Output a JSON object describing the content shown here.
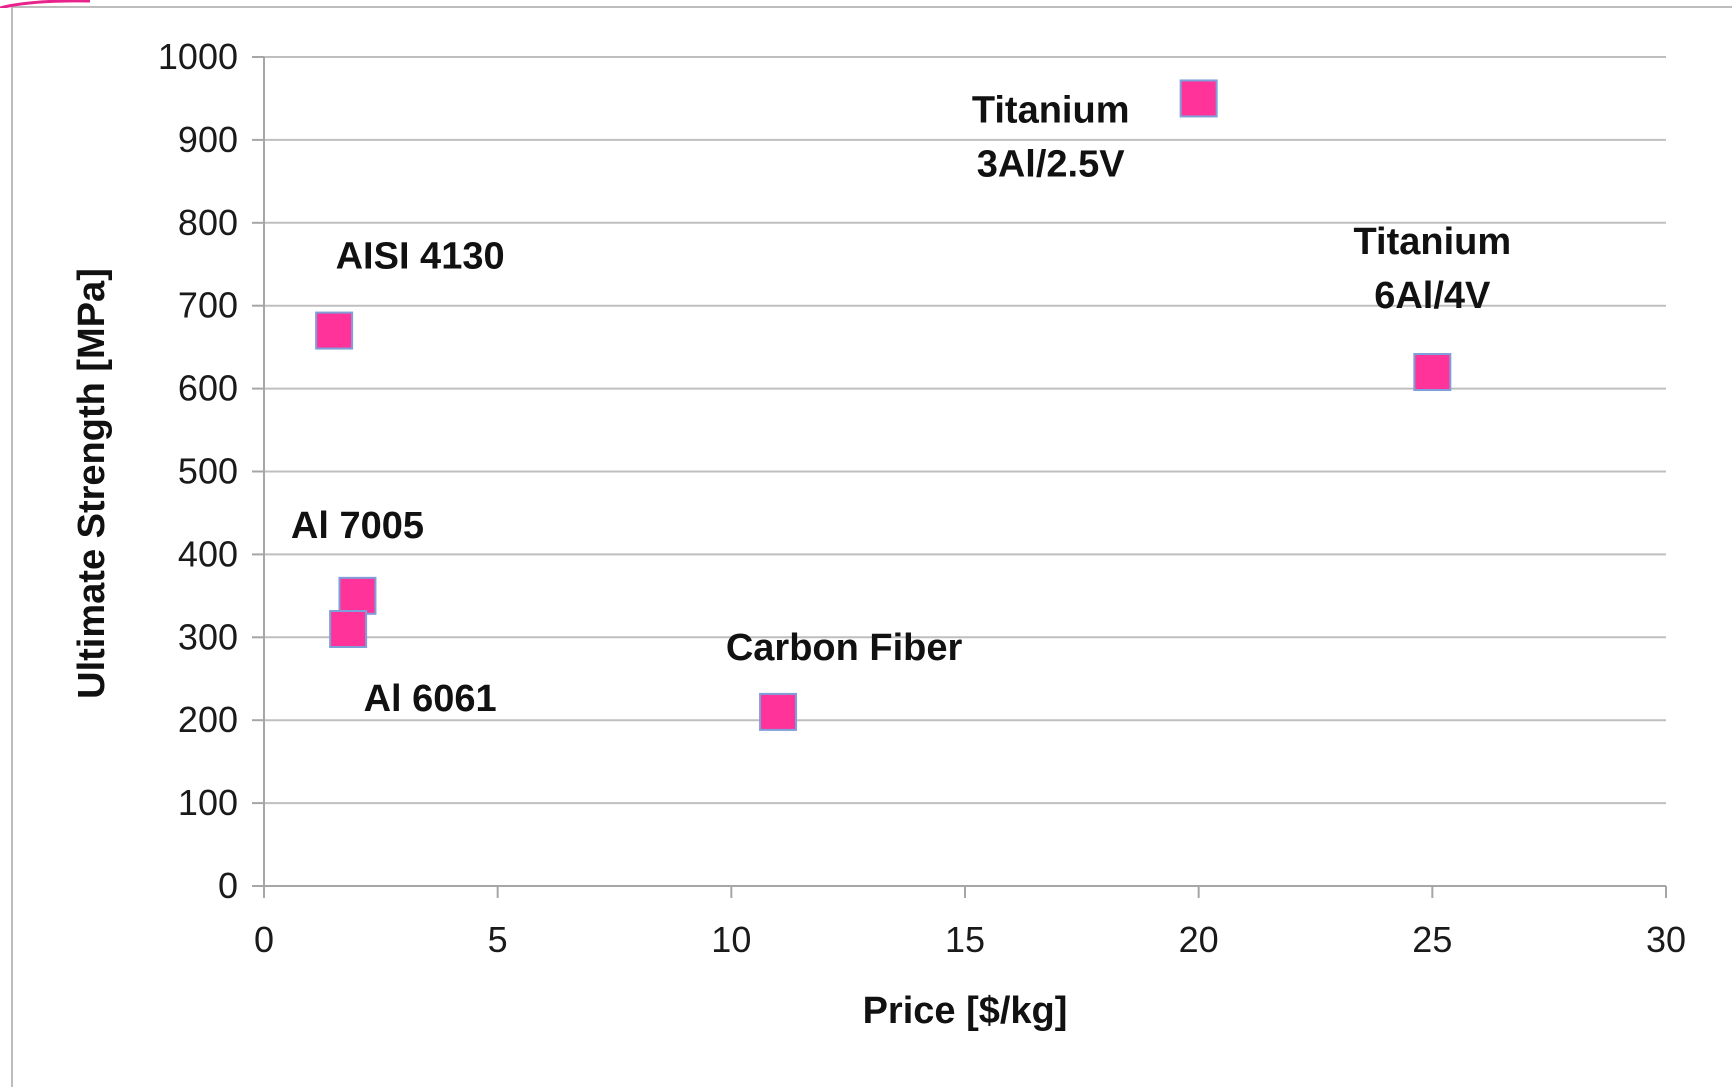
{
  "colors": {
    "marker_fill": "#ff3399",
    "marker_stroke": "#7f9fd9",
    "grid": "#bfbfbf",
    "axis": "#a6a6a6",
    "accent": "#e8238c"
  },
  "chart_data": {
    "type": "scatter",
    "title": "",
    "xlabel": "Price [$/kg]",
    "ylabel": "Ultimate Strength [MPa]",
    "xlim": [
      0,
      30
    ],
    "ylim": [
      0,
      1000
    ],
    "x_ticks": [
      0,
      5,
      10,
      15,
      20,
      25,
      30
    ],
    "y_ticks": [
      0,
      100,
      200,
      300,
      400,
      500,
      600,
      700,
      800,
      900,
      1000
    ],
    "grid": "horizontal",
    "legend": "none",
    "marker": "square",
    "points": [
      {
        "label": "Titanium 3Al/2.5V",
        "label_lines": [
          "Titanium",
          "3Al/2.5V"
        ],
        "x": 20,
        "y": 950
      },
      {
        "label": "AISI 4130",
        "label_lines": [
          "AISI 4130"
        ],
        "x": 1.5,
        "y": 670
      },
      {
        "label": "Titanium 6Al/4V",
        "label_lines": [
          "Titanium",
          "6Al/4V"
        ],
        "x": 25,
        "y": 620
      },
      {
        "label": "Al 7005",
        "label_lines": [
          "Al 7005"
        ],
        "x": 2,
        "y": 350
      },
      {
        "label": "Al 6061",
        "label_lines": [
          "Al 6061"
        ],
        "x": 1.8,
        "y": 310
      },
      {
        "label": "Carbon Fiber",
        "label_lines": [
          "Carbon Fiber"
        ],
        "x": 11,
        "y": 210
      }
    ]
  }
}
